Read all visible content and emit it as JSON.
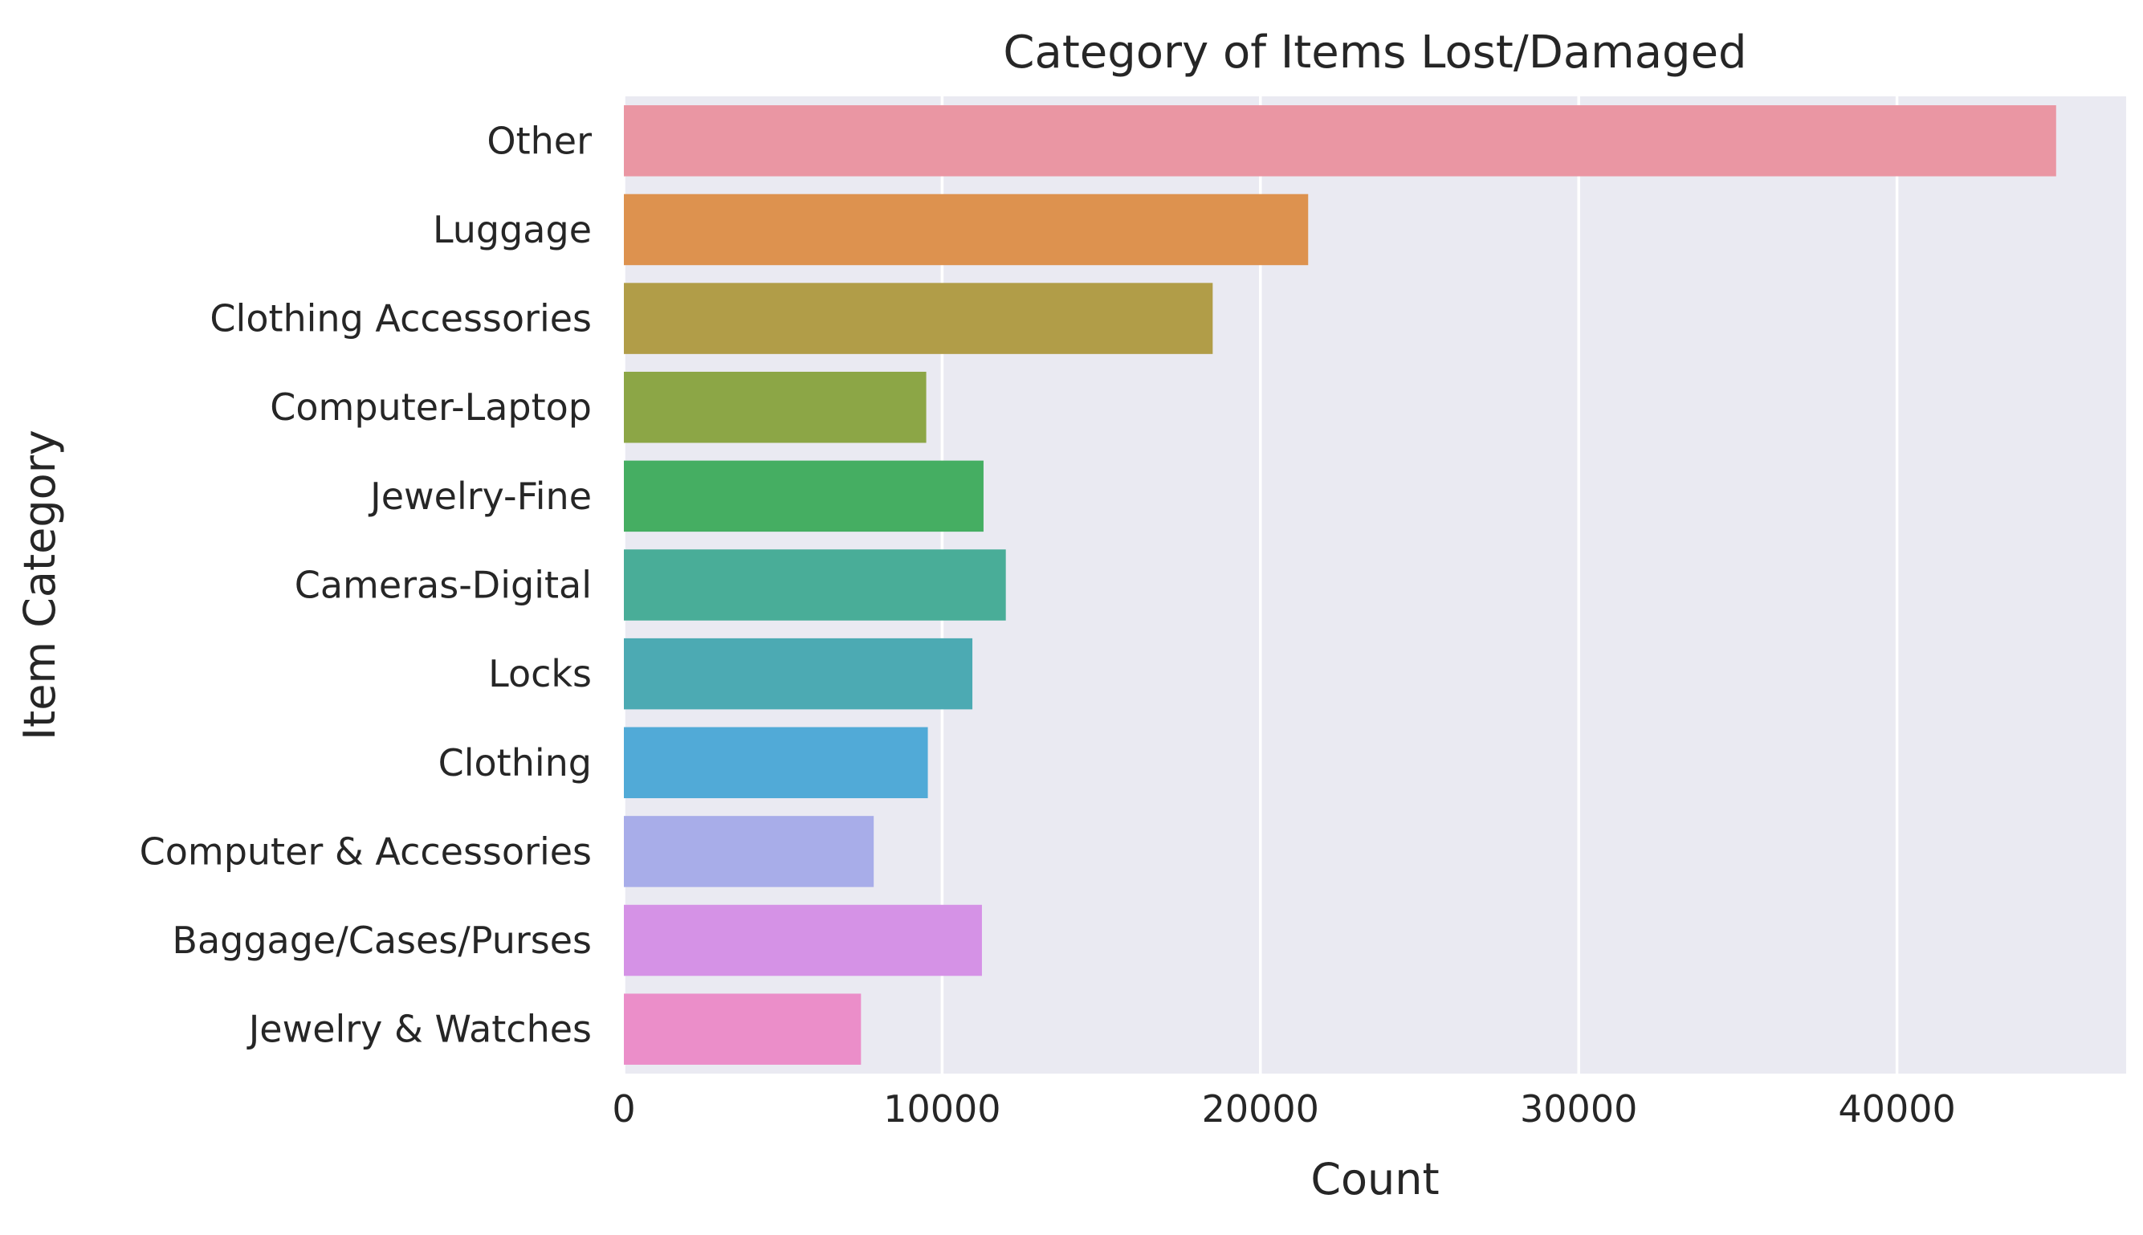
{
  "chart_data": {
    "type": "bar",
    "orientation": "horizontal",
    "title": "Category of Items Lost/Damaged",
    "xlabel": "Count",
    "ylabel": "Item Category",
    "categories": [
      "Other",
      "Luggage",
      "Clothing Accessories",
      "Computer-Laptop",
      "Jewelry-Fine",
      "Cameras-Digital",
      "Locks",
      "Clothing",
      "Computer & Accessories",
      "Baggage/Cases/Purses",
      "Jewelry & Watches"
    ],
    "values": [
      45000,
      21500,
      18500,
      9500,
      11300,
      12000,
      10950,
      9550,
      7850,
      11250,
      7450
    ],
    "colors": [
      "#ea96a3",
      "#dd924f",
      "#b19d48",
      "#8ca646",
      "#45ae62",
      "#49ad98",
      "#4caab3",
      "#51aad7",
      "#a8ade9",
      "#d592e6",
      "#eb8ec9"
    ],
    "xticks": [
      0,
      10000,
      20000,
      30000,
      40000
    ],
    "xlim": [
      0,
      47200
    ],
    "grid": true,
    "background": "#eaeaf2",
    "grid_color": "#ffffff",
    "legend": "none"
  }
}
